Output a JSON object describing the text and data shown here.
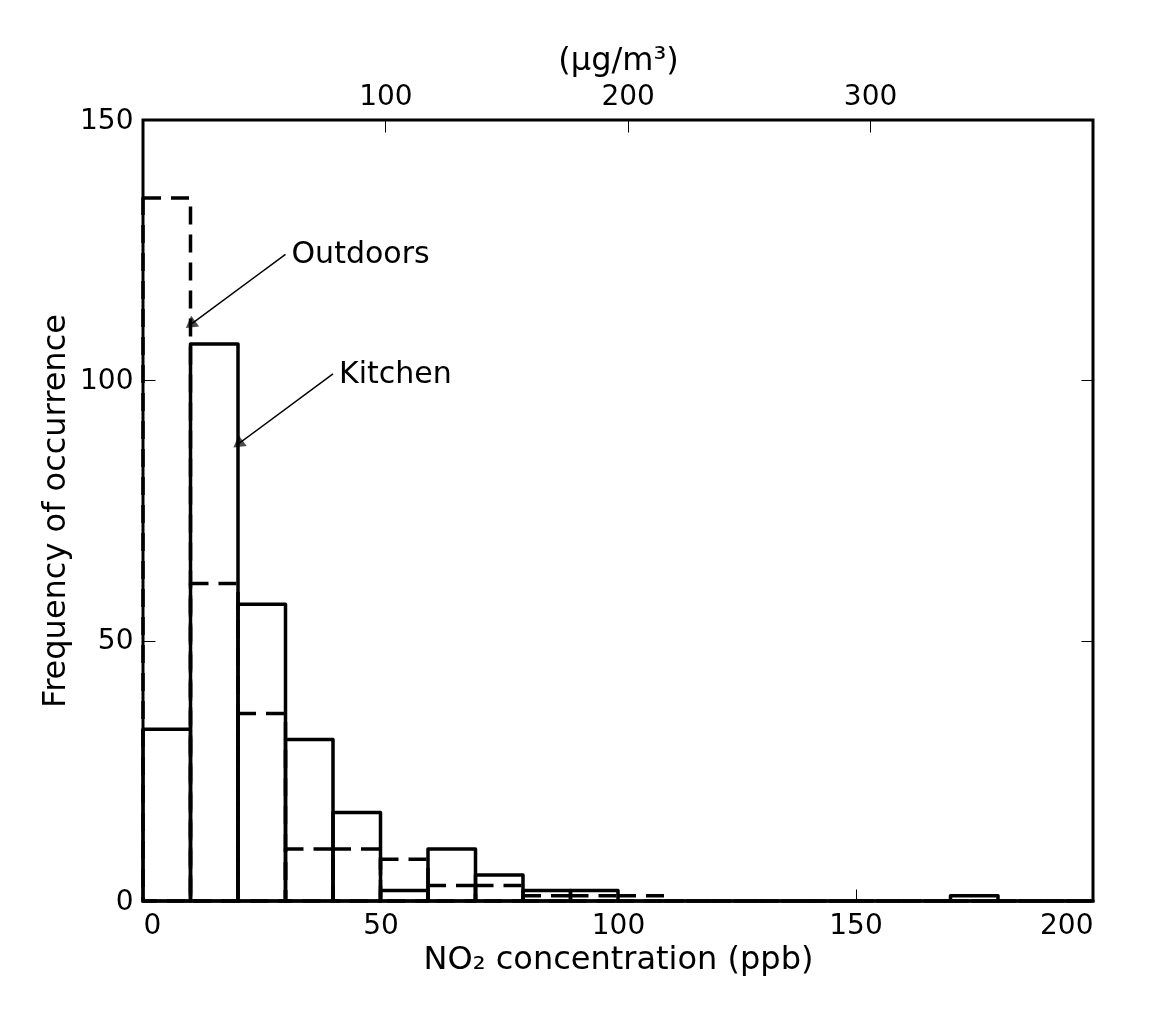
{
  "chart_data": {
    "type": "histogram",
    "xlabel": "NO₂ concentration (ppb)",
    "ylabel": "Frequency of occurrence",
    "x2label": "(μg/m³)",
    "bins": [
      0,
      10,
      20,
      30,
      40,
      50,
      60,
      70,
      80,
      90,
      100,
      110,
      120,
      130,
      140,
      150,
      160,
      170,
      180,
      190,
      200
    ],
    "series": [
      {
        "name": "Outdoors",
        "color": "#000000",
        "line_style": "dashed",
        "values": [
          135,
          61,
          36,
          10,
          10,
          8,
          3,
          3,
          1,
          1,
          1,
          0,
          0,
          0,
          0,
          0,
          0,
          0,
          0,
          0
        ]
      },
      {
        "name": "Kitchen",
        "color": "#000000",
        "line_style": "solid",
        "values": [
          33,
          107,
          57,
          31,
          17,
          2,
          10,
          5,
          2,
          2,
          0,
          0,
          0,
          0,
          0,
          0,
          0,
          1,
          0,
          0
        ]
      }
    ],
    "xlim": [
      0,
      200
    ],
    "xticks": [
      0,
      50,
      100,
      150,
      200
    ],
    "ylim": [
      0,
      150
    ],
    "yticks": [
      0,
      50,
      100,
      150
    ],
    "x2lim": [
      0,
      392
    ],
    "x2ticks": [
      100,
      200,
      300
    ],
    "grid": false,
    "legend": false
  }
}
